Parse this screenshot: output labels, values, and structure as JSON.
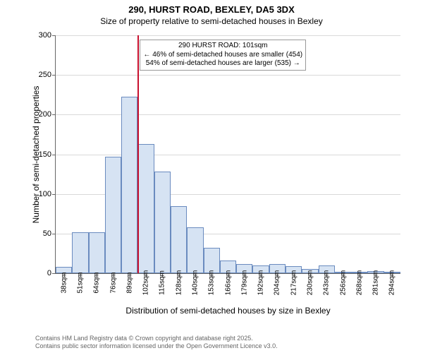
{
  "title_main": "290, HURST ROAD, BEXLEY, DA5 3DX",
  "title_sub": "Size of property relative to semi-detached houses in Bexley",
  "y_axis_title": "Number of semi-detached properties",
  "x_axis_title": "Distribution of semi-detached houses by size in Bexley",
  "chart": {
    "type": "bar",
    "ylim": [
      0,
      300
    ],
    "ytick_step": 50,
    "yticks": [
      0,
      50,
      100,
      150,
      200,
      250,
      300
    ],
    "grid_color": "#d9d9d9",
    "bar_fill": "#d6e3f3",
    "bar_stroke": "#6a8bbf",
    "background": "#ffffff",
    "bar_width_ratio": 1.0,
    "x_labels": [
      "38sqm",
      "51sqm",
      "64sqm",
      "76sqm",
      "89sqm",
      "102sqm",
      "115sqm",
      "128sqm",
      "140sqm",
      "153sqm",
      "166sqm",
      "179sqm",
      "192sqm",
      "204sqm",
      "217sqm",
      "230sqm",
      "243sqm",
      "256sqm",
      "268sqm",
      "281sqm",
      "294sqm"
    ],
    "values": [
      8,
      52,
      52,
      147,
      223,
      163,
      128,
      85,
      58,
      32,
      16,
      12,
      10,
      12,
      9,
      5,
      10,
      1,
      1,
      3,
      1
    ],
    "marker": {
      "index_after": 4,
      "color": "#c8102e",
      "annotation_lines": [
        "290 HURST ROAD: 101sqm",
        "← 46% of semi-detached houses are smaller (454)",
        "54% of semi-detached houses are larger (535) →"
      ]
    }
  },
  "footer_line1": "Contains HM Land Registry data © Crown copyright and database right 2025.",
  "footer_line2": "Contains public sector information licensed under the Open Government Licence v3.0."
}
